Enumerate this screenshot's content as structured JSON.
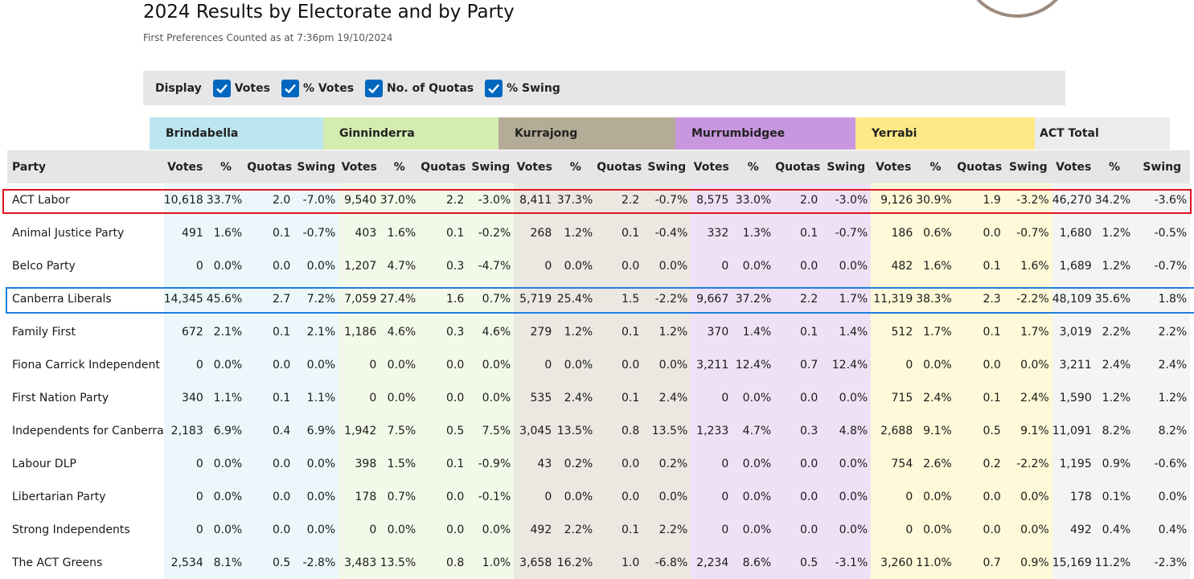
{
  "header": {
    "title": "2024 Results by Electorate and by Party",
    "subtitle": "First Preferences Counted as at 7:36pm 19/10/2024"
  },
  "display": {
    "label": "Display",
    "options": [
      {
        "label": "Votes",
        "checked": true
      },
      {
        "label": "% Votes",
        "checked": true
      },
      {
        "label": "No. of Quotas",
        "checked": true
      },
      {
        "label": "% Swing",
        "checked": true
      }
    ]
  },
  "colors": {
    "brindabella_header": "#bde5ef",
    "brindabella_cell": "#ebf7fa",
    "ginninderra_header": "#d5ecb1",
    "ginninderra_cell": "#f3f9e8",
    "kurrajong_header": "#b5ac97",
    "kurrajong_cell": "#ebe8e2",
    "murrumbidgee_header": "#c897e0",
    "murrumbidgee_cell": "#efe1f5",
    "yerrabi_header": "#fde987",
    "yerrabi_cell": "#fef9d8",
    "total_header": "#ececec",
    "total_cell": "#f4f4f4",
    "party_header": "#e6e6e6",
    "highlight_labor": "#e0141e",
    "highlight_liberal": "#1f7fe0",
    "checkbox": "#0067c0"
  },
  "electorates": [
    "Brindabella",
    "Ginninderra",
    "Kurrajong",
    "Murrumbidgee",
    "Yerrabi",
    "ACT Total"
  ],
  "columns": {
    "party": "Party",
    "votes": "Votes",
    "pct": "%",
    "quotas": "Quotas",
    "swing": "Swing"
  },
  "rows": [
    {
      "party": "ACT Labor",
      "cells": [
        [
          "10,618",
          "33.7%",
          "2.0",
          "-7.0%"
        ],
        [
          "9,540",
          "37.0%",
          "2.2",
          "-3.0%"
        ],
        [
          "8,411",
          "37.3%",
          "2.2",
          "-0.7%"
        ],
        [
          "8,575",
          "33.0%",
          "2.0",
          "-3.0%"
        ],
        [
          "9,126",
          "30.9%",
          "1.9",
          "-3.2%"
        ],
        [
          "46,270",
          "34.2%",
          "-3.6%"
        ]
      ]
    },
    {
      "party": "Animal Justice Party",
      "cells": [
        [
          "491",
          "1.6%",
          "0.1",
          "-0.7%"
        ],
        [
          "403",
          "1.6%",
          "0.1",
          "-0.2%"
        ],
        [
          "268",
          "1.2%",
          "0.1",
          "-0.4%"
        ],
        [
          "332",
          "1.3%",
          "0.1",
          "-0.7%"
        ],
        [
          "186",
          "0.6%",
          "0.0",
          "-0.7%"
        ],
        [
          "1,680",
          "1.2%",
          "-0.5%"
        ]
      ]
    },
    {
      "party": "Belco Party",
      "cells": [
        [
          "0",
          "0.0%",
          "0.0",
          "0.0%"
        ],
        [
          "1,207",
          "4.7%",
          "0.3",
          "-4.7%"
        ],
        [
          "0",
          "0.0%",
          "0.0",
          "0.0%"
        ],
        [
          "0",
          "0.0%",
          "0.0",
          "0.0%"
        ],
        [
          "482",
          "1.6%",
          "0.1",
          "1.6%"
        ],
        [
          "1,689",
          "1.2%",
          "-0.7%"
        ]
      ]
    },
    {
      "party": "Canberra Liberals",
      "cells": [
        [
          "14,345",
          "45.6%",
          "2.7",
          "7.2%"
        ],
        [
          "7,059",
          "27.4%",
          "1.6",
          "0.7%"
        ],
        [
          "5,719",
          "25.4%",
          "1.5",
          "-2.2%"
        ],
        [
          "9,667",
          "37.2%",
          "2.2",
          "1.7%"
        ],
        [
          "11,319",
          "38.3%",
          "2.3",
          "-2.2%"
        ],
        [
          "48,109",
          "35.6%",
          "1.8%"
        ]
      ]
    },
    {
      "party": "Family First",
      "cells": [
        [
          "672",
          "2.1%",
          "0.1",
          "2.1%"
        ],
        [
          "1,186",
          "4.6%",
          "0.3",
          "4.6%"
        ],
        [
          "279",
          "1.2%",
          "0.1",
          "1.2%"
        ],
        [
          "370",
          "1.4%",
          "0.1",
          "1.4%"
        ],
        [
          "512",
          "1.7%",
          "0.1",
          "1.7%"
        ],
        [
          "3,019",
          "2.2%",
          "2.2%"
        ]
      ]
    },
    {
      "party": "Fiona Carrick Independent",
      "cells": [
        [
          "0",
          "0.0%",
          "0.0",
          "0.0%"
        ],
        [
          "0",
          "0.0%",
          "0.0",
          "0.0%"
        ],
        [
          "0",
          "0.0%",
          "0.0",
          "0.0%"
        ],
        [
          "3,211",
          "12.4%",
          "0.7",
          "12.4%"
        ],
        [
          "0",
          "0.0%",
          "0.0",
          "0.0%"
        ],
        [
          "3,211",
          "2.4%",
          "2.4%"
        ]
      ]
    },
    {
      "party": "First Nation Party",
      "cells": [
        [
          "340",
          "1.1%",
          "0.1",
          "1.1%"
        ],
        [
          "0",
          "0.0%",
          "0.0",
          "0.0%"
        ],
        [
          "535",
          "2.4%",
          "0.1",
          "2.4%"
        ],
        [
          "0",
          "0.0%",
          "0.0",
          "0.0%"
        ],
        [
          "715",
          "2.4%",
          "0.1",
          "2.4%"
        ],
        [
          "1,590",
          "1.2%",
          "1.2%"
        ]
      ]
    },
    {
      "party": "Independents for Canberra",
      "cells": [
        [
          "2,183",
          "6.9%",
          "0.4",
          "6.9%"
        ],
        [
          "1,942",
          "7.5%",
          "0.5",
          "7.5%"
        ],
        [
          "3,045",
          "13.5%",
          "0.8",
          "13.5%"
        ],
        [
          "1,233",
          "4.7%",
          "0.3",
          "4.8%"
        ],
        [
          "2,688",
          "9.1%",
          "0.5",
          "9.1%"
        ],
        [
          "11,091",
          "8.2%",
          "8.2%"
        ]
      ]
    },
    {
      "party": "Labour DLP",
      "cells": [
        [
          "0",
          "0.0%",
          "0.0",
          "0.0%"
        ],
        [
          "398",
          "1.5%",
          "0.1",
          "-0.9%"
        ],
        [
          "43",
          "0.2%",
          "0.0",
          "0.2%"
        ],
        [
          "0",
          "0.0%",
          "0.0",
          "0.0%"
        ],
        [
          "754",
          "2.6%",
          "0.2",
          "-2.2%"
        ],
        [
          "1,195",
          "0.9%",
          "-0.6%"
        ]
      ]
    },
    {
      "party": "Libertarian Party",
      "cells": [
        [
          "0",
          "0.0%",
          "0.0",
          "0.0%"
        ],
        [
          "178",
          "0.7%",
          "0.0",
          "-0.1%"
        ],
        [
          "0",
          "0.0%",
          "0.0",
          "0.0%"
        ],
        [
          "0",
          "0.0%",
          "0.0",
          "0.0%"
        ],
        [
          "0",
          "0.0%",
          "0.0",
          "0.0%"
        ],
        [
          "178",
          "0.1%",
          "0.0%"
        ]
      ]
    },
    {
      "party": "Strong Independents",
      "cells": [
        [
          "0",
          "0.0%",
          "0.0",
          "0.0%"
        ],
        [
          "0",
          "0.0%",
          "0.0",
          "0.0%"
        ],
        [
          "492",
          "2.2%",
          "0.1",
          "2.2%"
        ],
        [
          "0",
          "0.0%",
          "0.0",
          "0.0%"
        ],
        [
          "0",
          "0.0%",
          "0.0",
          "0.0%"
        ],
        [
          "492",
          "0.4%",
          "0.4%"
        ]
      ]
    },
    {
      "party": "The ACT Greens",
      "cells": [
        [
          "2,534",
          "8.1%",
          "0.5",
          "-2.8%"
        ],
        [
          "3,483",
          "13.5%",
          "0.8",
          "1.0%"
        ],
        [
          "3,658",
          "16.2%",
          "1.0",
          "-6.8%"
        ],
        [
          "2,234",
          "8.6%",
          "0.5",
          "-3.1%"
        ],
        [
          "3,260",
          "11.0%",
          "0.7",
          "0.9%"
        ],
        [
          "15,169",
          "11.2%",
          "-2.3%"
        ]
      ]
    }
  ]
}
